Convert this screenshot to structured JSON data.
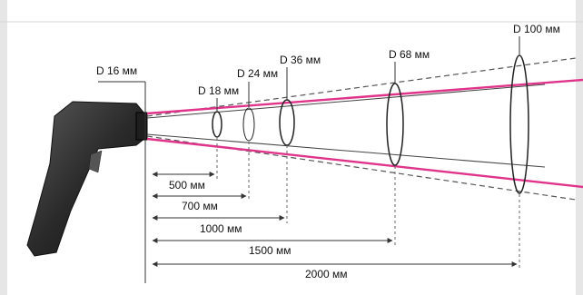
{
  "diameters": [
    {
      "label": "D 16 мм"
    },
    {
      "label": "D 18 мм"
    },
    {
      "label": "D 24 мм"
    },
    {
      "label": "D 36 мм"
    },
    {
      "label": "D 68 мм"
    },
    {
      "label": "D 100 мм"
    }
  ],
  "distances": [
    {
      "label": "500 мм"
    },
    {
      "label": "700 мм"
    },
    {
      "label": "1000 мм"
    },
    {
      "label": "1500 мм"
    },
    {
      "label": "2000 мм"
    }
  ],
  "colors": {
    "laser": "#e0338a",
    "background": "#ffffff",
    "frame": "#cfcfcf",
    "line": "#333333",
    "device": "#2b2b2b"
  }
}
